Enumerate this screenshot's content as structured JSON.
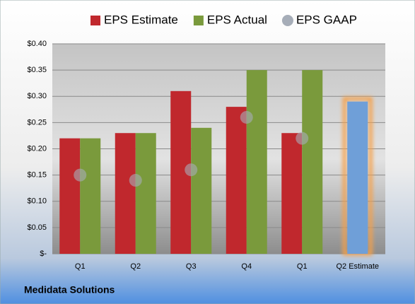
{
  "chart_data": {
    "type": "bar",
    "categories": [
      "Q1",
      "Q2",
      "Q3",
      "Q4",
      "Q1",
      "Q2 Estimate"
    ],
    "series": [
      {
        "name": "EPS Estimate",
        "color": "#c0282d",
        "values": [
          0.22,
          0.23,
          0.31,
          0.28,
          0.23,
          0.29
        ],
        "colors": [
          "#c0282d",
          "#c0282d",
          "#c0282d",
          "#c0282d",
          "#c0282d",
          "#6f9fd8"
        ]
      },
      {
        "name": "EPS Actual",
        "color": "#7a9a3c",
        "values": [
          0.22,
          0.23,
          0.24,
          0.35,
          0.35,
          null
        ]
      },
      {
        "name": "EPS GAAP",
        "type": "scatter",
        "color": "#a6adb8",
        "values": [
          0.15,
          0.14,
          0.16,
          0.26,
          0.22,
          null
        ]
      }
    ],
    "ylim": [
      0,
      0.4
    ],
    "yticks": [
      {
        "value": 0,
        "label": "$-"
      },
      {
        "value": 0.05,
        "label": "$0.05"
      },
      {
        "value": 0.1,
        "label": "$0.10"
      },
      {
        "value": 0.15,
        "label": "$0.15"
      },
      {
        "value": 0.2,
        "label": "$0.20"
      },
      {
        "value": 0.25,
        "label": "$0.25"
      },
      {
        "value": 0.3,
        "label": "$0.30"
      },
      {
        "value": 0.35,
        "label": "$0.35"
      },
      {
        "value": 0.4,
        "label": "$0.40"
      }
    ],
    "grid": true,
    "legend": "top",
    "footer": "Medidata Solutions"
  }
}
